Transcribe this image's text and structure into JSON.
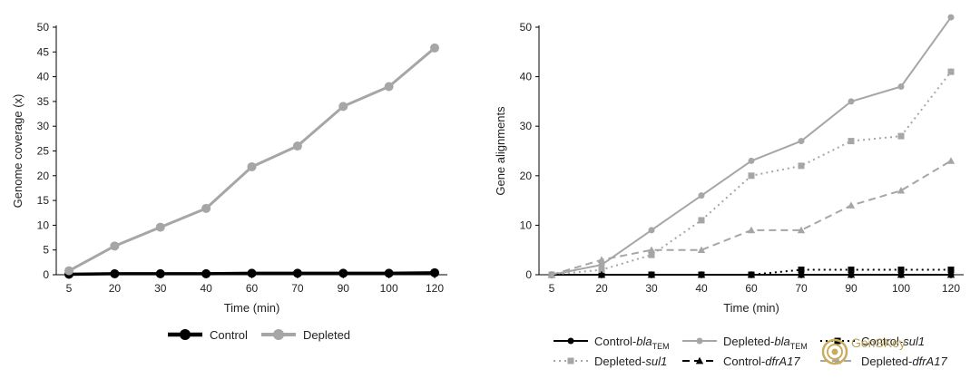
{
  "chart_data": [
    {
      "type": "line",
      "xlabel": "Time (min)",
      "ylabel": "Genome coverage (x)",
      "categories": [
        "5",
        "20",
        "30",
        "40",
        "60",
        "70",
        "90",
        "100",
        "120"
      ],
      "ylim": [
        0,
        50
      ],
      "yticks": [
        0,
        5,
        10,
        15,
        20,
        25,
        30,
        35,
        40,
        45,
        50
      ],
      "legend_position": "bottom",
      "series": [
        {
          "name": "Control",
          "values": [
            0.1,
            0.2,
            0.2,
            0.2,
            0.3,
            0.3,
            0.3,
            0.3,
            0.4
          ],
          "color": "#000000",
          "marker": "circle",
          "dash": "solid",
          "width": 3.5
        },
        {
          "name": "Depleted",
          "values": [
            0.8,
            5.8,
            9.6,
            13.4,
            21.8,
            26.0,
            34.0,
            38.0,
            45.8
          ],
          "color": "#a6a6a6",
          "marker": "circle",
          "dash": "solid",
          "width": 3
        }
      ]
    },
    {
      "type": "line",
      "xlabel": "Time (min)",
      "ylabel": "Gene alignments",
      "categories": [
        "5",
        "20",
        "30",
        "40",
        "60",
        "70",
        "90",
        "100",
        "120"
      ],
      "ylim": [
        0,
        50
      ],
      "yticks": [
        0,
        10,
        20,
        30,
        40,
        50
      ],
      "legend_position": "bottom",
      "series": [
        {
          "name": "Control-bla",
          "sub": "TEM",
          "values": [
            0,
            0,
            0,
            0,
            0,
            0,
            0,
            0,
            0
          ],
          "color": "#000000",
          "marker": "circle",
          "dash": "solid",
          "width": 2
        },
        {
          "name": "Depleted-bla",
          "sub": "TEM",
          "values": [
            0,
            2,
            9,
            16,
            23,
            27,
            35,
            38,
            52
          ],
          "color": "#a6a6a6",
          "marker": "circle",
          "dash": "solid",
          "width": 2
        },
        {
          "name": "Control-sul1",
          "sub": "",
          "values": [
            0,
            0,
            0,
            0,
            0,
            1,
            1,
            1,
            1
          ],
          "color": "#000000",
          "marker": "square",
          "dash": "dotted",
          "width": 2
        },
        {
          "name": "Depleted-sul1",
          "sub": "",
          "values": [
            0,
            1,
            4,
            11,
            20,
            22,
            27,
            28,
            41
          ],
          "color": "#a6a6a6",
          "marker": "square",
          "dash": "dotted",
          "width": 2
        },
        {
          "name": "Control-dfrA17",
          "sub": "",
          "values": [
            0,
            0,
            0,
            0,
            0,
            0,
            0,
            0,
            0
          ],
          "color": "#000000",
          "marker": "triangle",
          "dash": "dashed",
          "width": 2
        },
        {
          "name": "Depleted-dfrA17",
          "sub": "",
          "values": [
            0,
            3,
            5,
            5,
            9,
            9,
            14,
            17,
            23
          ],
          "color": "#a6a6a6",
          "marker": "triangle",
          "dash": "dashed",
          "width": 2
        }
      ]
    }
  ],
  "watermark": {
    "text": "GenSKey",
    "icon": "swirl-logo-icon"
  }
}
